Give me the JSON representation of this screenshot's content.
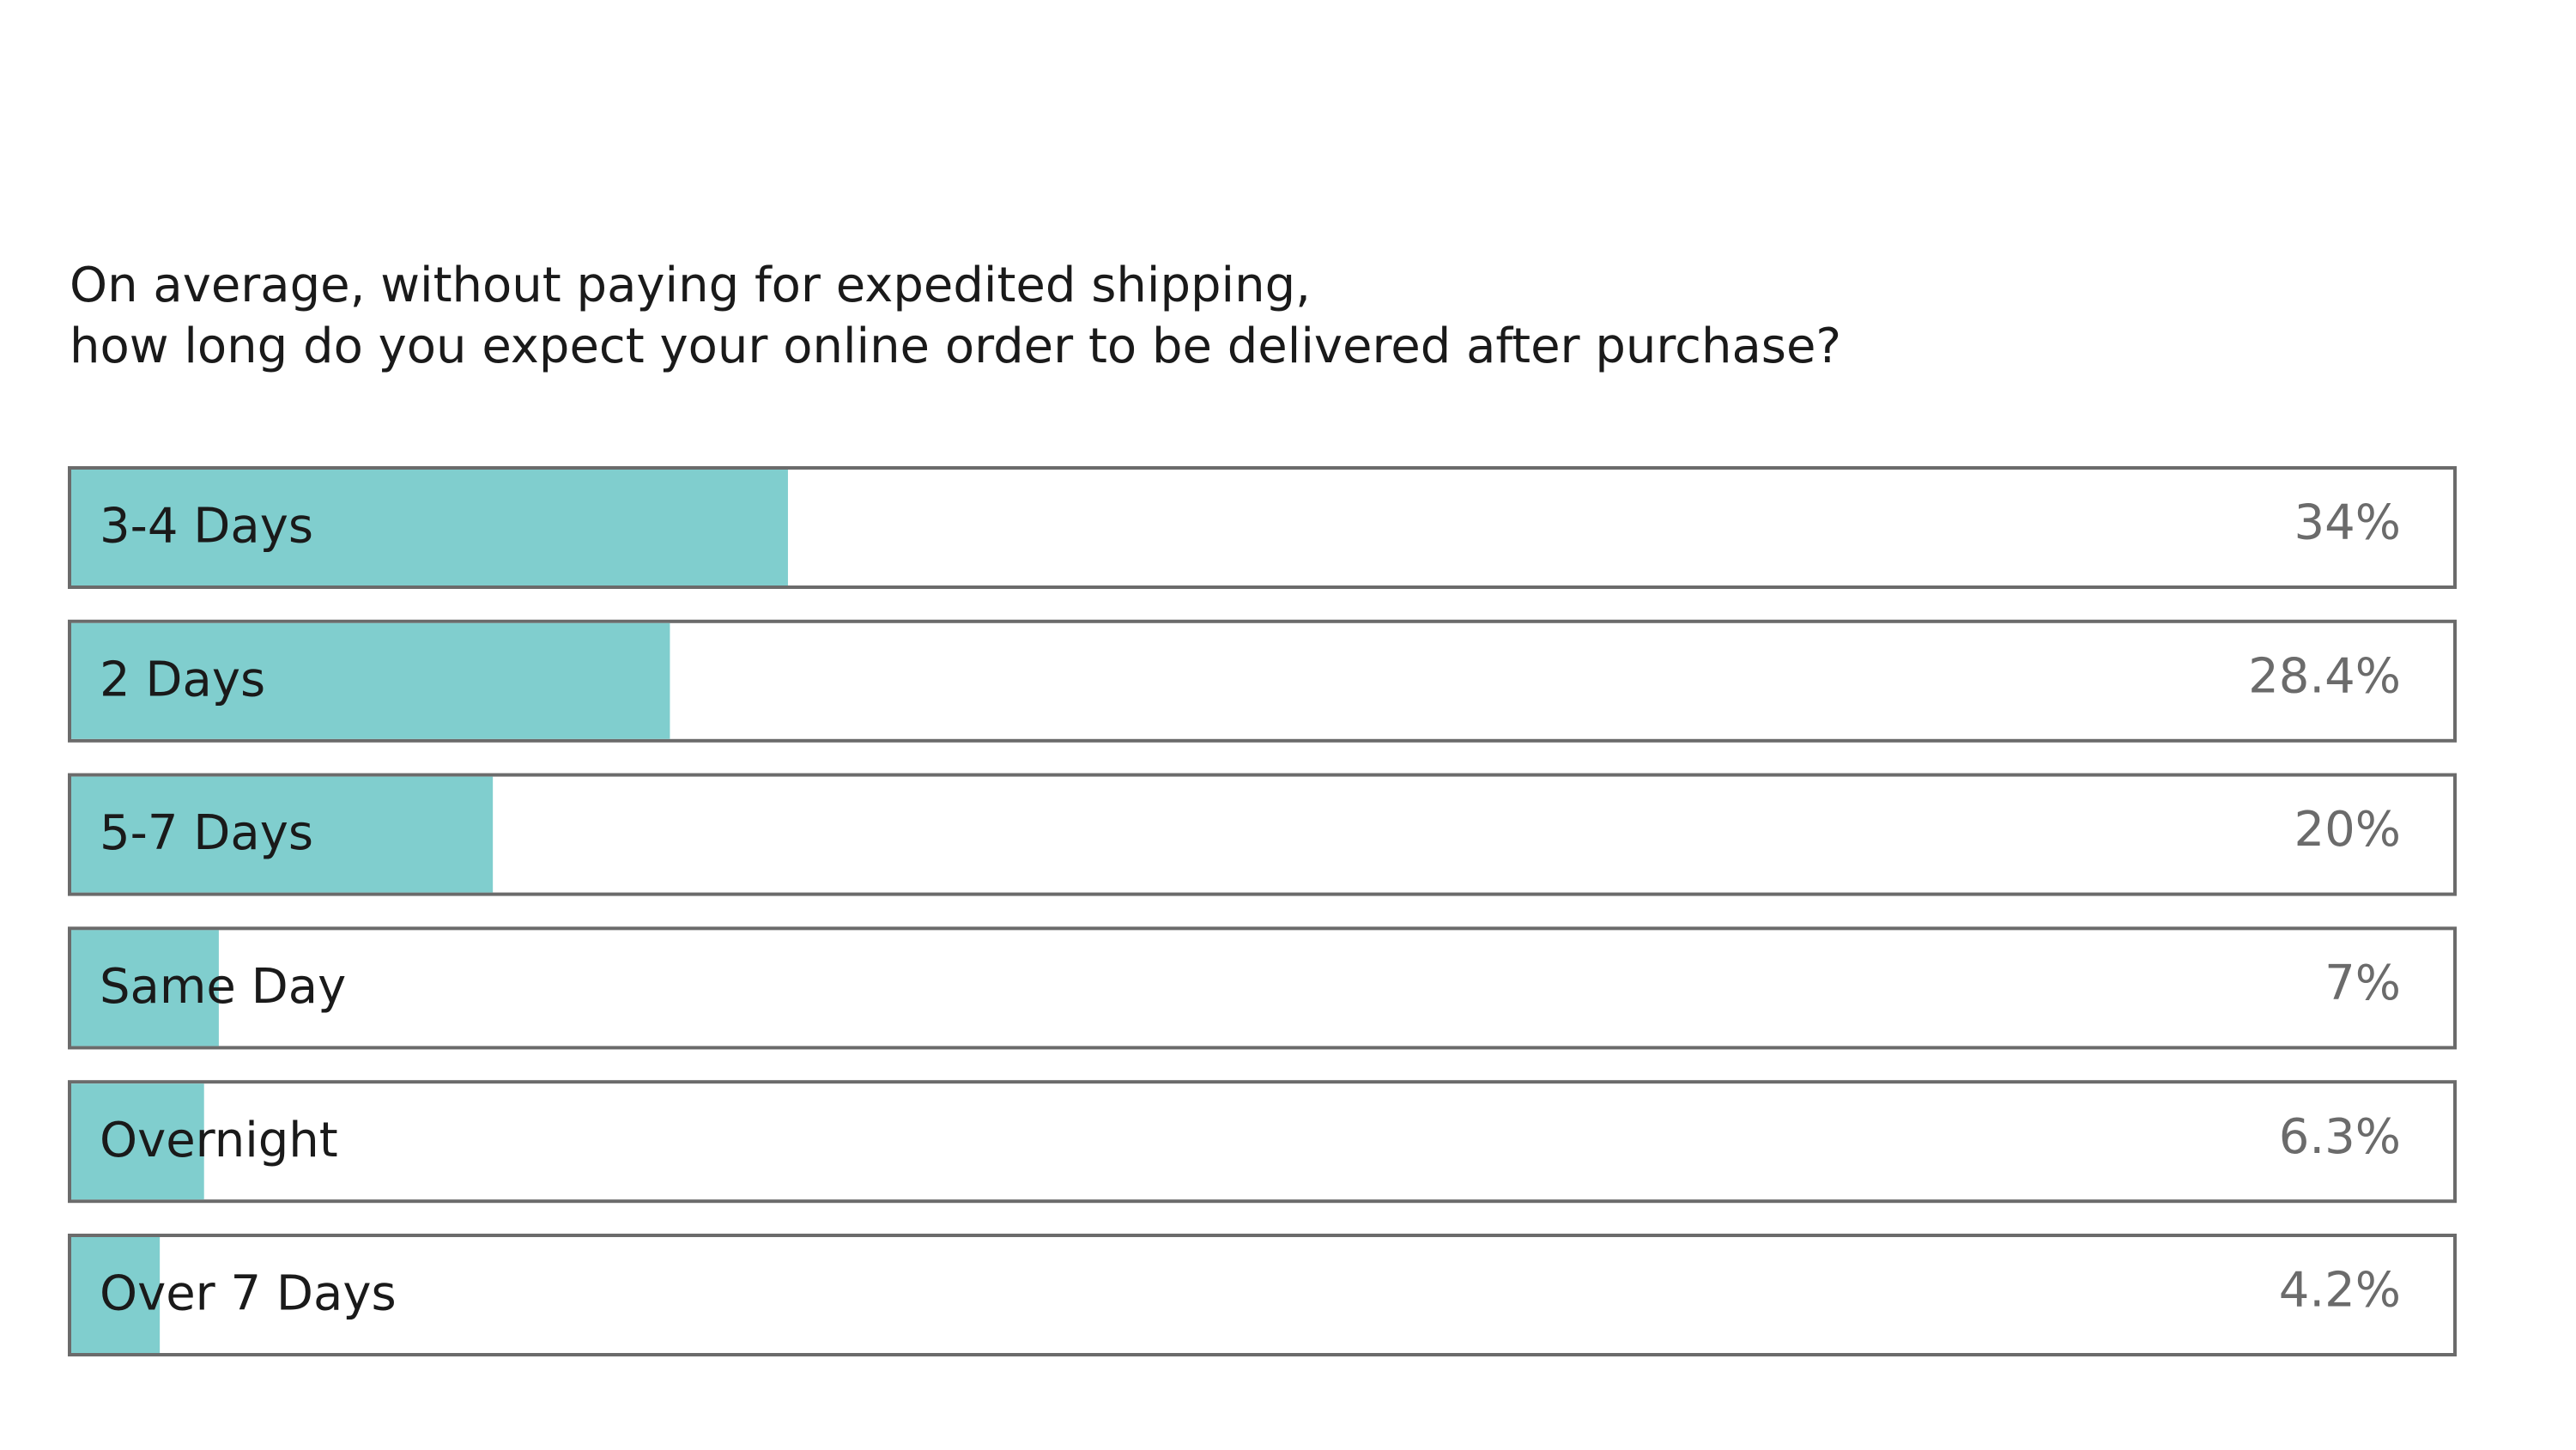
{
  "chart_data": {
    "type": "bar",
    "orientation": "horizontal",
    "title": [
      "On average, without paying for expedited shipping,",
      "how long do you expect your online order to be delivered after purchase?"
    ],
    "categories": [
      "3-4 Days",
      "2 Days",
      "5-7 Days",
      "Same Day",
      "Overnight",
      "Over 7 Days"
    ],
    "values": [
      34,
      28.4,
      20,
      7,
      6.3,
      4.2
    ],
    "value_labels": [
      "34%",
      "28.4%",
      "20%",
      "7%",
      "6.3%",
      "4.2%"
    ],
    "color": "#80cece",
    "xlim": [
      0,
      113
    ]
  }
}
